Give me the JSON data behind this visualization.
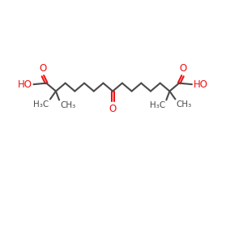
{
  "bg_color": "#ffffff",
  "bond_color": "#4a4a4a",
  "o_color": "#ee1111",
  "figsize": [
    3.05,
    3.0
  ],
  "dpi": 100,
  "xlim": [
    0,
    10.5
  ],
  "ylim": [
    -2.5,
    5.0
  ],
  "base_y": 3.2,
  "bl": 0.52,
  "bh": 0.22,
  "n_carbons": 15,
  "start_x": 0.85
}
